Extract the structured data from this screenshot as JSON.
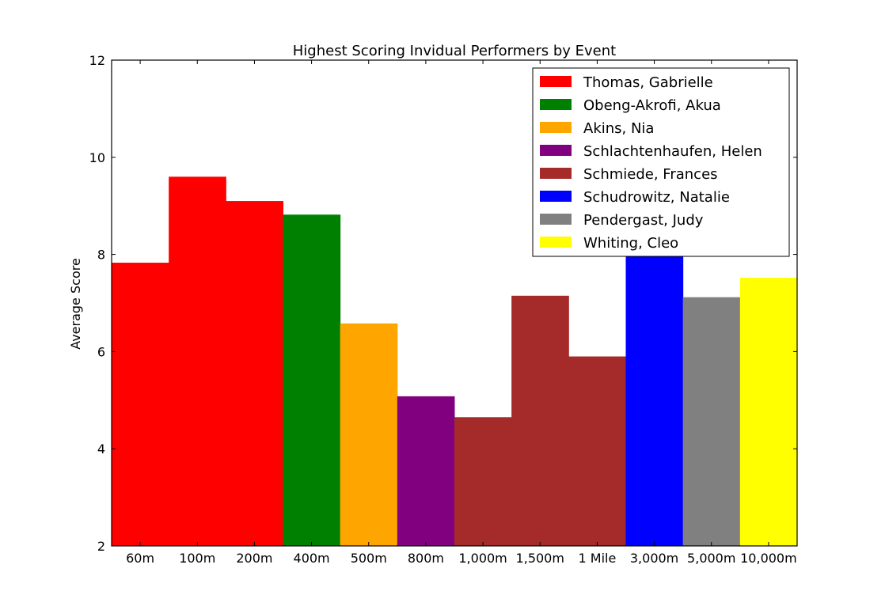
{
  "chart_data": {
    "type": "bar",
    "title": "Highest Scoring Invidual Performers by Event",
    "xlabel": "",
    "ylabel": "Average Score",
    "ylim": [
      2,
      12
    ],
    "yticks": [
      "2",
      "4",
      "6",
      "8",
      "10",
      "12"
    ],
    "grid": false,
    "legend_position": "top-right",
    "categories": [
      "60m",
      "100m",
      "200m",
      "400m",
      "500m",
      "800m",
      "1,000m",
      "1,500m",
      "1 Mile",
      "3,000m",
      "5,000m",
      "10,000m"
    ],
    "values": [
      7.83,
      9.6,
      9.1,
      8.82,
      6.58,
      5.08,
      4.65,
      7.15,
      5.9,
      8.0,
      7.12,
      7.52
    ],
    "bar_series_index": [
      0,
      0,
      0,
      1,
      2,
      3,
      4,
      4,
      4,
      5,
      6,
      7
    ],
    "series": [
      {
        "name": "Thomas, Gabrielle",
        "color": "#ff0000"
      },
      {
        "name": "Obeng-Akrofi, Akua",
        "color": "#008000"
      },
      {
        "name": "Akins, Nia",
        "color": "#ffa500"
      },
      {
        "name": "Schlachtenhaufen, Helen",
        "color": "#800080"
      },
      {
        "name": "Schmiede, Frances",
        "color": "#a52a2a"
      },
      {
        "name": "Schudrowitz, Natalie",
        "color": "#0000ff"
      },
      {
        "name": "Pendergast, Judy",
        "color": "#808080"
      },
      {
        "name": "Whiting, Cleo",
        "color": "#ffff00"
      }
    ]
  }
}
